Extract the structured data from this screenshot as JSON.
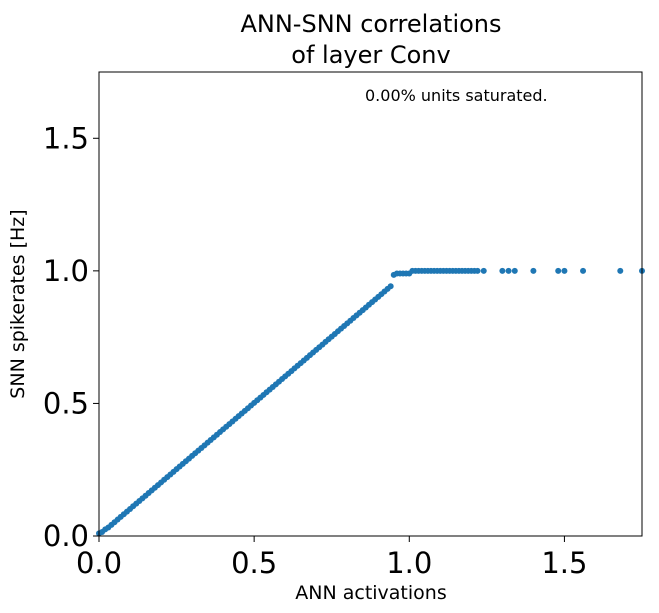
{
  "chart_data": {
    "type": "scatter",
    "title": [
      "ANN-SNN correlations",
      "of layer Conv"
    ],
    "xlabel": "ANN activations",
    "ylabel": "SNN spikerates [Hz]",
    "xlim": [
      0.0,
      1.75
    ],
    "ylim": [
      0.0,
      1.75
    ],
    "xticks": [
      {
        "value": 0.0,
        "label": "0.0"
      },
      {
        "value": 0.5,
        "label": "0.5"
      },
      {
        "value": 1.0,
        "label": "1.0"
      },
      {
        "value": 1.5,
        "label": "1.5"
      }
    ],
    "yticks": [
      {
        "value": 0.0,
        "label": "0.0"
      },
      {
        "value": 0.5,
        "label": "0.5"
      },
      {
        "value": 1.0,
        "label": "1.0"
      },
      {
        "value": 1.5,
        "label": "1.5"
      }
    ],
    "annotation": "0.00% units saturated.",
    "marker_color": "#1f77b4",
    "grid": false,
    "series": [
      {
        "points": [
          [
            0.0,
            0.01
          ],
          [
            0.01,
            0.015
          ],
          [
            0.02,
            0.025
          ],
          [
            0.03,
            0.032
          ],
          [
            0.04,
            0.042
          ],
          [
            0.05,
            0.052
          ],
          [
            0.06,
            0.062
          ],
          [
            0.07,
            0.072
          ],
          [
            0.08,
            0.082
          ],
          [
            0.09,
            0.092
          ],
          [
            0.1,
            0.102
          ],
          [
            0.11,
            0.112
          ],
          [
            0.12,
            0.122
          ],
          [
            0.13,
            0.132
          ],
          [
            0.14,
            0.142
          ],
          [
            0.15,
            0.152
          ],
          [
            0.16,
            0.162
          ],
          [
            0.17,
            0.172
          ],
          [
            0.18,
            0.182
          ],
          [
            0.19,
            0.192
          ],
          [
            0.2,
            0.202
          ],
          [
            0.21,
            0.212
          ],
          [
            0.22,
            0.222
          ],
          [
            0.23,
            0.232
          ],
          [
            0.24,
            0.242
          ],
          [
            0.25,
            0.252
          ],
          [
            0.26,
            0.262
          ],
          [
            0.27,
            0.272
          ],
          [
            0.28,
            0.282
          ],
          [
            0.29,
            0.292
          ],
          [
            0.3,
            0.302
          ],
          [
            0.31,
            0.312
          ],
          [
            0.32,
            0.322
          ],
          [
            0.33,
            0.332
          ],
          [
            0.34,
            0.342
          ],
          [
            0.35,
            0.352
          ],
          [
            0.36,
            0.362
          ],
          [
            0.37,
            0.372
          ],
          [
            0.38,
            0.382
          ],
          [
            0.39,
            0.392
          ],
          [
            0.4,
            0.402
          ],
          [
            0.41,
            0.412
          ],
          [
            0.42,
            0.422
          ],
          [
            0.43,
            0.432
          ],
          [
            0.44,
            0.442
          ],
          [
            0.45,
            0.452
          ],
          [
            0.46,
            0.462
          ],
          [
            0.47,
            0.472
          ],
          [
            0.48,
            0.482
          ],
          [
            0.49,
            0.492
          ],
          [
            0.5,
            0.502
          ],
          [
            0.51,
            0.512
          ],
          [
            0.52,
            0.522
          ],
          [
            0.53,
            0.532
          ],
          [
            0.54,
            0.542
          ],
          [
            0.55,
            0.552
          ],
          [
            0.56,
            0.562
          ],
          [
            0.57,
            0.572
          ],
          [
            0.58,
            0.582
          ],
          [
            0.59,
            0.592
          ],
          [
            0.6,
            0.602
          ],
          [
            0.61,
            0.612
          ],
          [
            0.62,
            0.622
          ],
          [
            0.63,
            0.632
          ],
          [
            0.64,
            0.642
          ],
          [
            0.65,
            0.652
          ],
          [
            0.66,
            0.662
          ],
          [
            0.67,
            0.672
          ],
          [
            0.68,
            0.682
          ],
          [
            0.69,
            0.692
          ],
          [
            0.7,
            0.702
          ],
          [
            0.71,
            0.712
          ],
          [
            0.72,
            0.722
          ],
          [
            0.73,
            0.732
          ],
          [
            0.74,
            0.742
          ],
          [
            0.75,
            0.752
          ],
          [
            0.76,
            0.762
          ],
          [
            0.77,
            0.772
          ],
          [
            0.78,
            0.782
          ],
          [
            0.79,
            0.792
          ],
          [
            0.8,
            0.802
          ],
          [
            0.81,
            0.812
          ],
          [
            0.82,
            0.822
          ],
          [
            0.83,
            0.832
          ],
          [
            0.84,
            0.842
          ],
          [
            0.85,
            0.852
          ],
          [
            0.86,
            0.862
          ],
          [
            0.87,
            0.872
          ],
          [
            0.88,
            0.882
          ],
          [
            0.89,
            0.892
          ],
          [
            0.9,
            0.902
          ],
          [
            0.91,
            0.912
          ],
          [
            0.92,
            0.922
          ],
          [
            0.93,
            0.932
          ],
          [
            0.94,
            0.942
          ],
          [
            0.95,
            0.985
          ],
          [
            0.96,
            0.99
          ],
          [
            0.97,
            0.99
          ],
          [
            0.98,
            0.99
          ],
          [
            0.99,
            0.99
          ],
          [
            1.0,
            0.99
          ],
          [
            1.01,
            1.0
          ],
          [
            1.02,
            1.0
          ],
          [
            1.03,
            1.0
          ],
          [
            1.04,
            1.0
          ],
          [
            1.05,
            1.0
          ],
          [
            1.06,
            1.0
          ],
          [
            1.07,
            1.0
          ],
          [
            1.08,
            1.0
          ],
          [
            1.09,
            1.0
          ],
          [
            1.1,
            1.0
          ],
          [
            1.11,
            1.0
          ],
          [
            1.12,
            1.0
          ],
          [
            1.13,
            1.0
          ],
          [
            1.14,
            1.0
          ],
          [
            1.15,
            1.0
          ],
          [
            1.16,
            1.0
          ],
          [
            1.17,
            1.0
          ],
          [
            1.18,
            1.0
          ],
          [
            1.19,
            1.0
          ],
          [
            1.2,
            1.0
          ],
          [
            1.21,
            1.0
          ],
          [
            1.22,
            1.0
          ],
          [
            1.24,
            1.0
          ],
          [
            1.3,
            1.0
          ],
          [
            1.32,
            1.0
          ],
          [
            1.34,
            1.0
          ],
          [
            1.4,
            1.0
          ],
          [
            1.48,
            1.0
          ],
          [
            1.5,
            1.0
          ],
          [
            1.56,
            1.0
          ],
          [
            1.68,
            1.0
          ],
          [
            1.75,
            1.0
          ]
        ]
      }
    ]
  }
}
